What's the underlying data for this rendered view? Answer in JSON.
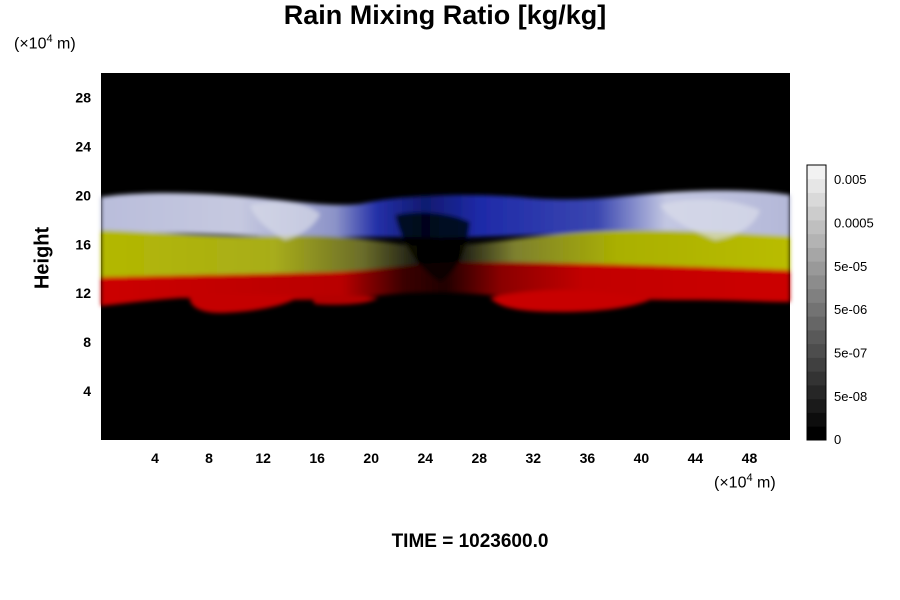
{
  "chart_data": {
    "type": "heatmap",
    "title": "Rain Mixing Ratio [kg/kg]",
    "ylabel": "Height",
    "x_unit": {
      "prefix": "(×10",
      "exp": "4",
      "suffix": " m)"
    },
    "y_unit": {
      "prefix": "(×10",
      "exp": "4",
      "suffix": " m)"
    },
    "xlim": [
      0,
      51
    ],
    "ylim": [
      0,
      30
    ],
    "x_ticks": [
      "4",
      "8",
      "12",
      "16",
      "20",
      "24",
      "28",
      "32",
      "36",
      "40",
      "44",
      "48"
    ],
    "y_ticks": [
      "4",
      "8",
      "12",
      "16",
      "20",
      "24",
      "28"
    ],
    "x_tick_values": [
      4,
      8,
      12,
      16,
      20,
      24,
      28,
      32,
      36,
      40,
      44,
      48
    ],
    "y_tick_values": [
      4,
      8,
      12,
      16,
      20,
      24,
      28
    ],
    "colorbar": {
      "tick_labels": [
        "0.005",
        "0.0005",
        "5e-05",
        "5e-06",
        "5e-07",
        "5e-08",
        "0"
      ],
      "colors": [
        "#000000",
        "#0d0d0d",
        "#1a1a1a",
        "#262626",
        "#333333",
        "#404040",
        "#4d4d4d",
        "#595959",
        "#666666",
        "#737373",
        "#808080",
        "#8c8c8c",
        "#999999",
        "#a6a6a6",
        "#b3b3b3",
        "#bfbfbf",
        "#cccccc",
        "#d9d9d9",
        "#e6e6e6",
        "#f2f2f2"
      ]
    },
    "bands": [
      {
        "name": "blue-white layer",
        "color": "#c3c6dc",
        "y_range": [
          17,
          20
        ]
      },
      {
        "name": "yellow layer",
        "color": "#b6b800",
        "y_range": [
          13.5,
          17
        ]
      },
      {
        "name": "red layer",
        "color": "#cc0000",
        "y_range": [
          11,
          13.8
        ]
      }
    ],
    "time_label": "TIME = 1023600.0"
  }
}
